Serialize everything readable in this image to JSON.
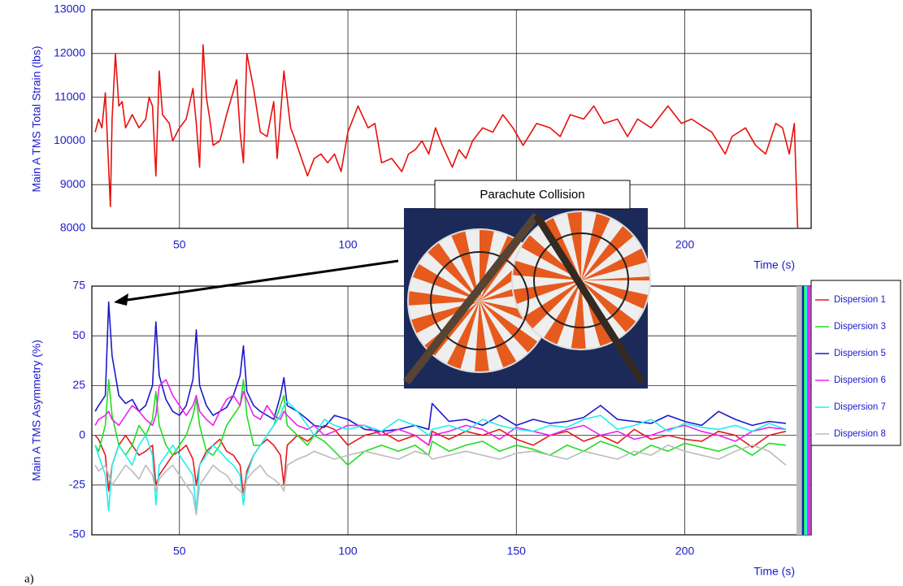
{
  "caption": "a)",
  "chart_data": [
    {
      "type": "line",
      "ylabel": "Main A TMS Total Strain (lbs)",
      "xlabel": "Time (s)",
      "annotation": "Parachute Collision",
      "color": "#e8100c",
      "x": [
        25,
        26,
        27,
        28,
        29.5,
        30,
        31,
        32,
        33,
        34,
        36,
        38,
        40,
        41,
        42,
        43,
        44,
        45,
        47,
        48,
        50,
        52,
        54,
        55,
        56,
        57,
        58,
        59,
        60,
        62,
        64,
        67,
        68,
        69,
        70,
        72,
        74,
        76,
        78,
        79,
        81,
        83,
        84,
        88,
        90,
        92,
        94,
        96,
        98,
        100,
        103,
        106,
        108,
        110,
        113,
        116,
        118,
        120,
        122,
        124,
        126,
        128,
        131,
        133,
        135,
        137,
        140,
        143,
        146,
        149,
        152,
        156,
        160,
        163,
        166,
        170,
        173,
        176,
        180,
        183,
        186,
        190,
        195,
        199,
        202,
        206,
        208,
        212,
        214,
        218,
        221,
        224,
        227,
        229,
        231,
        232.5,
        233.5
      ],
      "values": [
        10200,
        10500,
        10300,
        11100,
        8500,
        10500,
        12000,
        10800,
        10900,
        10300,
        10600,
        10300,
        10500,
        11000,
        10800,
        9200,
        11600,
        10600,
        10400,
        10000,
        10300,
        10500,
        11200,
        10400,
        9400,
        12200,
        11000,
        10500,
        9900,
        10000,
        10600,
        11400,
        10200,
        9500,
        12000,
        11200,
        10200,
        10100,
        10900,
        9600,
        11600,
        10300,
        10100,
        9200,
        9600,
        9700,
        9500,
        9700,
        9300,
        10200,
        10800,
        10300,
        10400,
        9500,
        9600,
        9300,
        9700,
        9800,
        10000,
        9700,
        10300,
        9900,
        9400,
        9800,
        9600,
        10000,
        10300,
        10200,
        10600,
        10300,
        9900,
        10400,
        10300,
        10100,
        10600,
        10500,
        10800,
        10400,
        10500,
        10100,
        10500,
        10300,
        10800,
        10400,
        10500,
        10300,
        10200,
        9700,
        10100,
        10300,
        9900,
        9700,
        10400,
        10300,
        9700,
        10400,
        8000
      ],
      "xlim": [
        24,
        237.5
      ],
      "xticks": [
        50,
        100,
        150,
        200
      ],
      "ylim": [
        8000,
        13000
      ],
      "yticks": [
        8000,
        9000,
        10000,
        11000,
        12000,
        13000
      ],
      "grid": true
    },
    {
      "type": "line",
      "ylabel": "Main A TMS Asymmetry (%)",
      "xlabel": "Time (s)",
      "x": [
        25,
        26,
        28,
        29,
        30,
        32,
        34,
        36,
        38,
        40,
        42,
        43,
        44,
        46,
        48,
        50,
        52,
        54,
        55,
        56,
        58,
        60,
        62,
        64,
        66,
        68,
        69,
        70,
        72,
        74,
        76,
        78,
        80,
        81,
        82,
        85,
        88,
        90,
        93,
        96,
        100,
        105,
        110,
        115,
        120,
        124,
        125,
        130,
        135,
        140,
        145,
        150,
        155,
        160,
        165,
        170,
        175,
        180,
        185,
        190,
        195,
        200,
        205,
        210,
        215,
        220,
        225,
        230
      ],
      "series": [
        {
          "name": "Dispersion 1",
          "color": "#e41a1c",
          "values": [
            0,
            -2,
            -10,
            -28,
            -15,
            -5,
            0,
            -5,
            -10,
            -8,
            -5,
            -25,
            -20,
            -15,
            -10,
            -8,
            -5,
            -12,
            -25,
            -15,
            -8,
            -5,
            -2,
            -8,
            -10,
            -15,
            -30,
            -18,
            -10,
            -5,
            -2,
            -5,
            -10,
            -25,
            -5,
            0,
            -3,
            0,
            5,
            3,
            -5,
            0,
            2,
            -3,
            0,
            -5,
            2,
            -2,
            2,
            0,
            3,
            -2,
            -5,
            0,
            2,
            -3,
            0,
            -4,
            3,
            -2,
            0,
            -2,
            -3,
            2,
            0,
            -6,
            0,
            2
          ]
        },
        {
          "name": "Dispersion 3",
          "color": "#22dd22",
          "values": [
            -5,
            -8,
            5,
            28,
            10,
            -5,
            -10,
            -5,
            5,
            0,
            8,
            22,
            5,
            -5,
            -10,
            -5,
            0,
            10,
            18,
            5,
            -8,
            -10,
            -5,
            5,
            10,
            15,
            28,
            10,
            -5,
            -5,
            0,
            5,
            15,
            20,
            5,
            0,
            -5,
            0,
            -3,
            -8,
            -15,
            -8,
            -5,
            -8,
            -5,
            -10,
            -3,
            -8,
            -5,
            -3,
            -8,
            -5,
            -7,
            -10,
            -5,
            -8,
            -3,
            -6,
            -10,
            -5,
            -8,
            -4,
            -6,
            -8,
            -5,
            -10,
            -4,
            -5
          ]
        },
        {
          "name": "Dispersion 5",
          "color": "#1a1acc",
          "values": [
            12,
            15,
            20,
            67,
            40,
            20,
            16,
            18,
            12,
            15,
            25,
            57,
            30,
            18,
            12,
            10,
            15,
            28,
            53,
            25,
            15,
            10,
            12,
            14,
            20,
            30,
            45,
            22,
            15,
            12,
            10,
            8,
            20,
            29,
            15,
            12,
            8,
            5,
            4,
            10,
            8,
            3,
            2,
            3,
            5,
            3,
            16,
            7,
            8,
            5,
            10,
            5,
            8,
            6,
            7,
            9,
            15,
            8,
            7,
            6,
            10,
            7,
            5,
            12,
            8,
            5,
            7,
            6
          ]
        },
        {
          "name": "Dispersion 6",
          "color": "#ee22ee",
          "values": [
            5,
            8,
            10,
            12,
            8,
            5,
            10,
            15,
            12,
            8,
            5,
            10,
            25,
            28,
            20,
            15,
            10,
            15,
            20,
            12,
            8,
            5,
            12,
            18,
            20,
            15,
            22,
            18,
            10,
            8,
            15,
            10,
            8,
            12,
            10,
            5,
            3,
            5,
            0,
            2,
            5,
            5,
            0,
            3,
            0,
            -5,
            0,
            2,
            5,
            3,
            -2,
            4,
            2,
            0,
            3,
            5,
            0,
            2,
            -2,
            0,
            3,
            5,
            2,
            0,
            -3,
            2,
            4,
            3
          ]
        },
        {
          "name": "Dispersion 7",
          "color": "#22eeee",
          "values": [
            -5,
            -10,
            -20,
            -38,
            -15,
            -5,
            -10,
            -15,
            -5,
            0,
            -10,
            -35,
            -15,
            -10,
            -5,
            -10,
            -15,
            -20,
            -38,
            -15,
            -10,
            -5,
            -8,
            -12,
            -15,
            -20,
            -35,
            -20,
            -10,
            -5,
            0,
            5,
            10,
            15,
            17,
            12,
            5,
            0,
            8,
            5,
            3,
            5,
            2,
            8,
            5,
            0,
            3,
            5,
            2,
            8,
            5,
            3,
            2,
            5,
            4,
            8,
            10,
            3,
            5,
            8,
            2,
            6,
            4,
            3,
            5,
            2,
            6,
            3
          ]
        },
        {
          "name": "Dispersion 8",
          "color": "#bbbbbb",
          "values": [
            -15,
            -18,
            -15,
            -20,
            -25,
            -20,
            -15,
            -18,
            -22,
            -15,
            -20,
            -28,
            -22,
            -18,
            -15,
            -20,
            -25,
            -30,
            -40,
            -25,
            -20,
            -15,
            -18,
            -20,
            -25,
            -28,
            -30,
            -22,
            -18,
            -15,
            -20,
            -22,
            -25,
            -28,
            -15,
            -12,
            -10,
            -8,
            -10,
            -12,
            -10,
            -8,
            -10,
            -12,
            -8,
            -10,
            -12,
            -10,
            -8,
            -10,
            -12,
            -9,
            -8,
            -10,
            -12,
            -8,
            -10,
            -12,
            -8,
            -10,
            -5,
            -8,
            -10,
            -12,
            -8,
            -5,
            -8,
            -15
          ]
        }
      ],
      "xlim": [
        24,
        237.5
      ],
      "xticks": [
        50,
        100,
        150,
        200
      ],
      "ylim": [
        -50,
        75
      ],
      "yticks": [
        -50,
        -25,
        0,
        25,
        50,
        75
      ],
      "grid": true,
      "legend": "right"
    }
  ]
}
